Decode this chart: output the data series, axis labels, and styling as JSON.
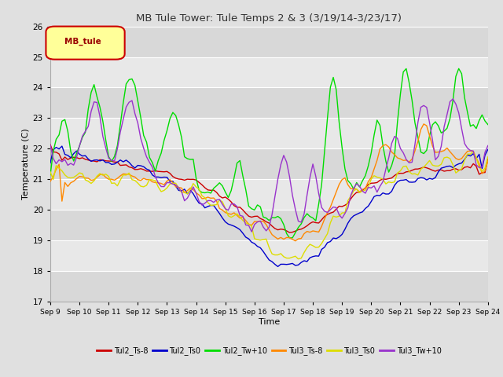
{
  "title": "MB Tule Tower: Tule Temps 2 & 3 (3/19/14-3/23/17)",
  "xlabel": "Time",
  "ylabel": "Temperature (C)",
  "ylim": [
    17.0,
    26.0
  ],
  "yticks": [
    17.0,
    18.0,
    19.0,
    20.0,
    21.0,
    22.0,
    23.0,
    24.0,
    25.0,
    26.0
  ],
  "xlim": [
    0,
    150
  ],
  "xtick_positions": [
    0,
    10,
    20,
    30,
    40,
    50,
    60,
    70,
    80,
    90,
    100,
    110,
    120,
    130,
    140,
    150
  ],
  "xtick_labels": [
    "Sep 9",
    "Sep 10",
    "Sep 11",
    "Sep 12",
    "Sep 13",
    "Sep 14",
    "Sep 15",
    "Sep 16",
    "Sep 17",
    "Sep 18",
    "Sep 19",
    "Sep 20",
    "Sep 21",
    "Sep 22",
    "Sep 23",
    "Sep 24"
  ],
  "series_colors": [
    "#cc0000",
    "#0000cc",
    "#00dd00",
    "#ff8800",
    "#dddd00",
    "#9933cc"
  ],
  "series_labels": [
    "Tul2_Ts-8",
    "Tul2_Ts0",
    "Tul2_Tw+10",
    "Tul3_Ts-8",
    "Tul3_Ts0",
    "Tul3_Tw+10"
  ],
  "legend_box_color": "#ffff99",
  "legend_box_edge": "#cc0000",
  "legend_box_text": "MB_tule",
  "fig_bg_color": "#e0e0e0",
  "plot_bg_color": "#e8e8e8",
  "band_color_dark": "#d8d8d8",
  "band_color_light": "#e8e8e8",
  "grid_color": "#cccccc"
}
